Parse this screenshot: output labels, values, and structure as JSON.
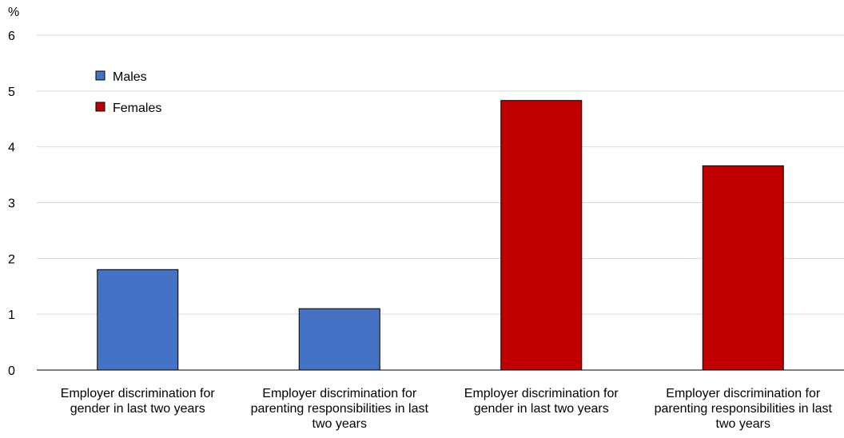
{
  "chart_data": {
    "type": "bar",
    "ylabel": "%",
    "ylim": [
      0,
      6
    ],
    "yticks": [
      0,
      1,
      2,
      3,
      4,
      5,
      6
    ],
    "grid": true,
    "legend_position": "top-left",
    "bars": [
      {
        "series": "Males",
        "category": "Employer discrimination for gender in last two years",
        "value": 1.8
      },
      {
        "series": "Males",
        "category": "Employer discrimination for parenting responsibilities in last two years",
        "value": 1.1
      },
      {
        "series": "Females",
        "category": "Employer discrimination for gender in last two years",
        "value": 4.83
      },
      {
        "series": "Females",
        "category": "Employer discrimination for parenting responsibilities in last two years",
        "value": 3.66
      }
    ],
    "category_label_lines": [
      [
        "Employer discrimination for",
        "gender in last two years"
      ],
      [
        "Employer discrimination for",
        "parenting responsibilities in last",
        "two years"
      ],
      [
        "Employer discrimination for",
        "gender in last two years"
      ],
      [
        "Employer discrimination for",
        "parenting responsibilities in last",
        "two years"
      ]
    ],
    "series": [
      {
        "name": "Males",
        "color": "#4472c4"
      },
      {
        "name": "Females",
        "color": "#c00000"
      }
    ]
  }
}
